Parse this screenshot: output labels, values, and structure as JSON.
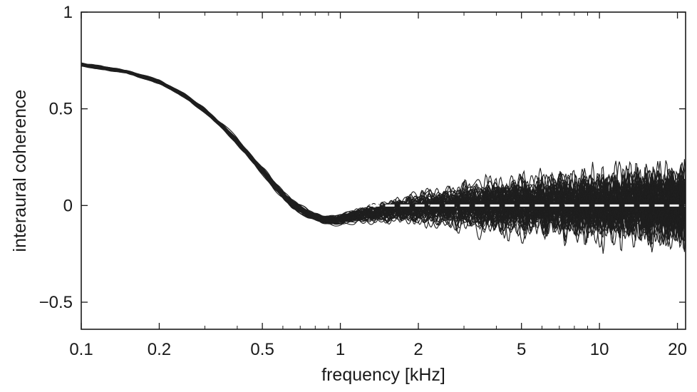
{
  "chart_data": {
    "type": "line",
    "title": "",
    "xlabel": "frequency [kHz]",
    "ylabel": "interaural coherence",
    "x_scale": "log",
    "xlim": [
      0.1,
      21.5
    ],
    "ylim": [
      -0.64,
      1.0
    ],
    "x_ticks": [
      0.1,
      0.2,
      0.5,
      1,
      2,
      5,
      10,
      20
    ],
    "x_tick_labels": [
      "0.1",
      "0.2",
      "0.5",
      "1",
      "2",
      "5",
      "10",
      "20"
    ],
    "y_ticks": [
      -0.5,
      0,
      0.5,
      1
    ],
    "y_tick_labels": [
      "−0.5",
      "0",
      "0.5",
      "1"
    ],
    "grid": false,
    "colors": {
      "curves": "#1e1e1e",
      "reference": "#ffffff",
      "axes": "#1a1a1a"
    },
    "series": [
      {
        "style": "bundle of many curves",
        "x": [
          0.1,
          0.15,
          0.2,
          0.25,
          0.3,
          0.35,
          0.4,
          0.45,
          0.5,
          0.55,
          0.6,
          0.65,
          0.7,
          0.75,
          0.8,
          0.85,
          0.9,
          0.95,
          1.0,
          1.2,
          1.5,
          1.8,
          2.0,
          2.5,
          3.0,
          4.0,
          5.0,
          7.0,
          10.0,
          14.0,
          20.0,
          21.5
        ],
        "values": [
          0.73,
          0.69,
          0.64,
          0.57,
          0.49,
          0.41,
          0.33,
          0.25,
          0.18,
          0.11,
          0.06,
          0.01,
          -0.02,
          -0.045,
          -0.06,
          -0.07,
          -0.075,
          -0.075,
          -0.07,
          -0.05,
          -0.03,
          -0.02,
          -0.015,
          -0.01,
          -0.005,
          0.0,
          0.0,
          0.0,
          0.0,
          0.0,
          0.0,
          0.0
        ],
        "spread": [
          0.012,
          0.012,
          0.013,
          0.014,
          0.016,
          0.018,
          0.02,
          0.022,
          0.024,
          0.026,
          0.028,
          0.03,
          0.03,
          0.03,
          0.03,
          0.03,
          0.03,
          0.035,
          0.04,
          0.05,
          0.07,
          0.09,
          0.1,
          0.13,
          0.15,
          0.18,
          0.19,
          0.2,
          0.22,
          0.25,
          0.27,
          0.28
        ]
      },
      {
        "style": "dashed reference line",
        "x": [
          1.0,
          21.5
        ],
        "values": [
          0,
          0
        ]
      }
    ]
  }
}
